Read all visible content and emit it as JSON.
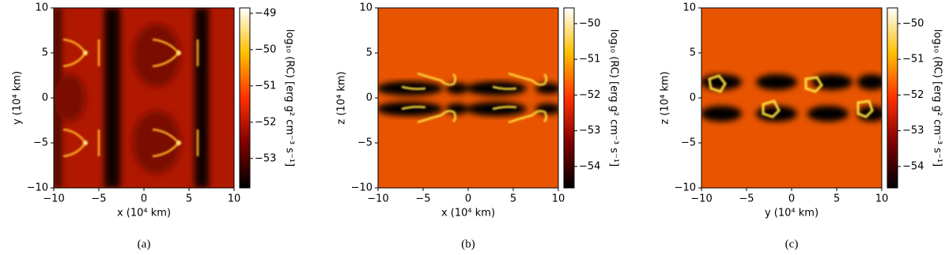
{
  "chart_data": [
    {
      "type": "heatmap",
      "xlabel": "x (10⁴ km)",
      "ylabel": "y (10⁴ km)",
      "colorbar_label": "log₁₀ (RC) [erg g² cm⁻³ s⁻¹]",
      "caption": "(a)",
      "xlim": [
        -10,
        10
      ],
      "ylim": [
        -10,
        10
      ],
      "xticks": [
        {
          "value": -10,
          "label": "−10"
        },
        {
          "value": -5,
          "label": "−5"
        },
        0,
        5,
        10
      ],
      "yticks": [
        {
          "value": -10,
          "label": "−10"
        },
        {
          "value": -5,
          "label": "−5"
        },
        0,
        5,
        10
      ],
      "clim": [
        -53.81,
        -48.85
      ],
      "cticks": [
        {
          "value": -53,
          "label": "−53"
        },
        {
          "value": -52,
          "label": "−52"
        },
        {
          "value": -51,
          "label": "−51"
        },
        {
          "value": -50,
          "label": "−50"
        },
        {
          "value": -49,
          "label": "−49"
        }
      ]
    },
    {
      "type": "heatmap",
      "xlabel": "x (10⁴ km)",
      "ylabel": "z (10⁴ km)",
      "colorbar_label": "log₁₀ (RC) [erg g² cm⁻³ s⁻¹]",
      "caption": "(b)",
      "xlim": [
        -10,
        10
      ],
      "ylim": [
        -10,
        10
      ],
      "xticks": [
        {
          "value": -10,
          "label": "−10"
        },
        {
          "value": -5,
          "label": "−5"
        },
        0,
        5,
        10
      ],
      "yticks": [
        {
          "value": -10,
          "label": "−10"
        },
        {
          "value": -5,
          "label": "−5"
        },
        0,
        5,
        10
      ],
      "clim": [
        -54.6,
        -49.56
      ],
      "cticks": [
        {
          "value": -54,
          "label": "−54"
        },
        {
          "value": -53,
          "label": "−53"
        },
        {
          "value": -52,
          "label": "−52"
        },
        {
          "value": -51,
          "label": "−51"
        },
        {
          "value": -50,
          "label": "−50"
        }
      ]
    },
    {
      "type": "heatmap",
      "xlabel": "y (10⁴ km)",
      "ylabel": "z (10⁴ km)",
      "colorbar_label": "log₁₀ (RC) [erg g² cm⁻³ s⁻¹]",
      "caption": "(c)",
      "xlim": [
        -10,
        10
      ],
      "ylim": [
        -10,
        10
      ],
      "xticks": [
        {
          "value": -10,
          "label": "−10"
        },
        {
          "value": -5,
          "label": "−5"
        },
        0,
        5,
        10
      ],
      "yticks": [
        {
          "value": -10,
          "label": "−10"
        },
        {
          "value": -5,
          "label": "−5"
        },
        0,
        5,
        10
      ],
      "clim": [
        -54.6,
        -49.56
      ],
      "cticks": [
        {
          "value": -54,
          "label": "−54"
        },
        {
          "value": -53,
          "label": "−53"
        },
        {
          "value": -52,
          "label": "−52"
        },
        {
          "value": -51,
          "label": "−51"
        },
        {
          "value": -50,
          "label": "−50"
        }
      ]
    }
  ]
}
